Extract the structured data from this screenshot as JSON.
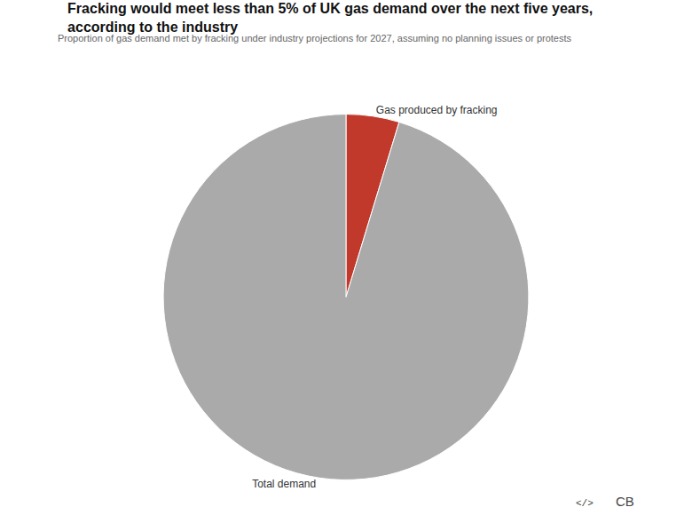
{
  "chart_data": {
    "type": "pie",
    "title": "Fracking would meet less than 5% of UK gas demand over the next five years,\naccording to the industry",
    "subtitle": "Proportion of gas demand met by fracking under industry projections for 2027, assuming no planning issues or protests",
    "categories": [
      "Gas produced by fracking",
      "Total demand"
    ],
    "values": [
      4.7,
      95.3
    ],
    "colors": [
      "#c0392b",
      "#aaaaaa"
    ],
    "annotations": [
      "CB",
      "</>"
    ]
  }
}
